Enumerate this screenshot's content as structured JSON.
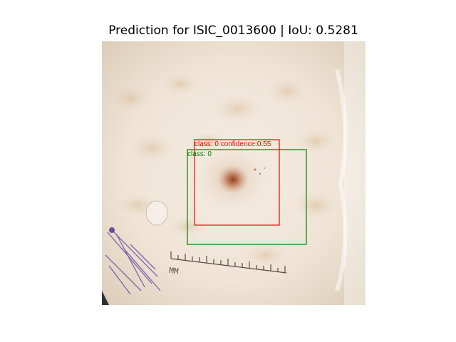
{
  "figure": {
    "title": "Prediction for ISIC_0013600 | IoU: 0.5281"
  },
  "prediction_box": {
    "label": "class: 0 confidence:0.55",
    "color": "#ff0000"
  },
  "ground_truth_box": {
    "label": "class: 0",
    "color": "#008000"
  },
  "ruler": {
    "unit_label": "MM"
  }
}
